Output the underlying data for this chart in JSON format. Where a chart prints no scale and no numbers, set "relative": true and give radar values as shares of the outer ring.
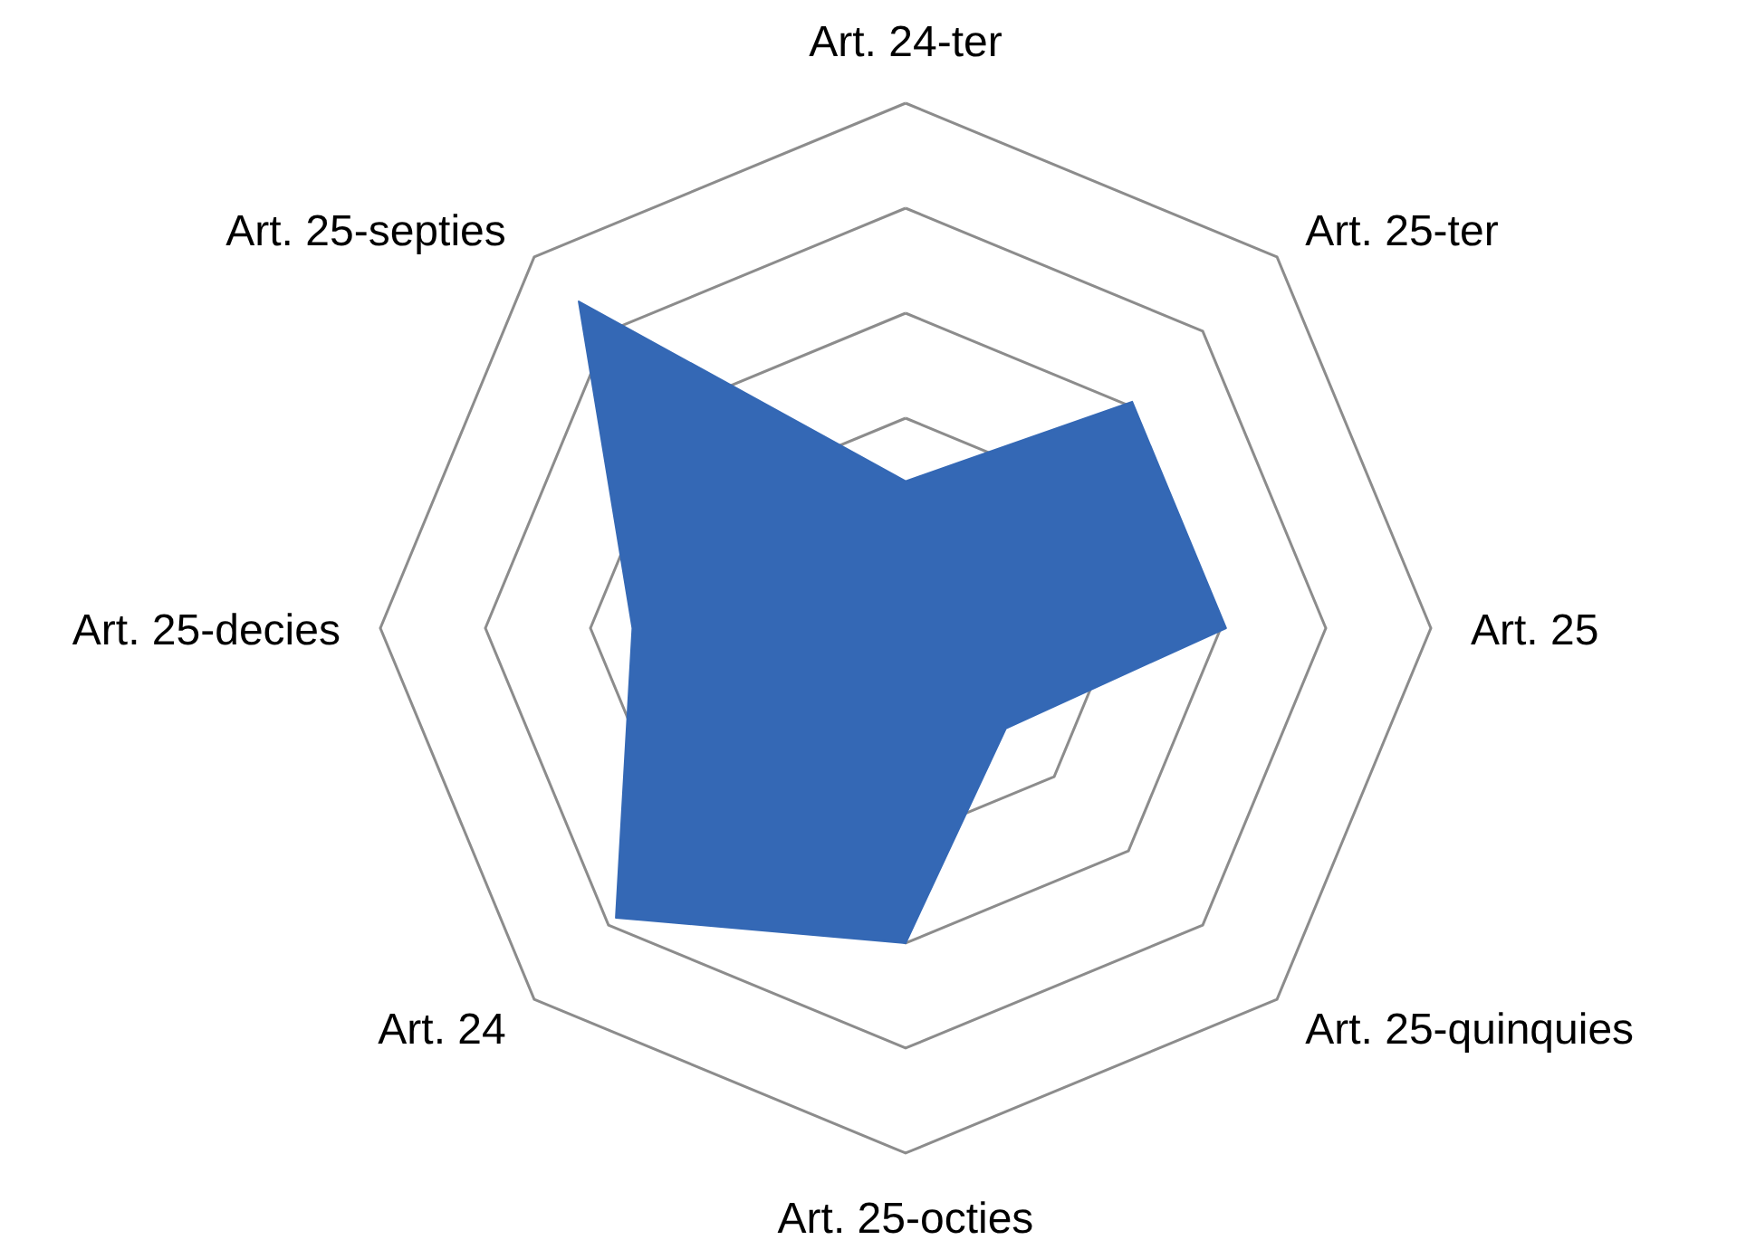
{
  "chart_data": {
    "type": "radar",
    "relative": true,
    "grid": true,
    "categories": [
      "Art. 24-ter",
      "Art. 25-ter",
      "Art. 25",
      "Art. 25-quinquies",
      "Art. 25-octies",
      "Art. 24",
      "Art. 25-decies",
      "Art. 25-septies"
    ],
    "series": [
      {
        "color": "#3468b5",
        "values": [
          0.28,
          0.61,
          0.61,
          0.27,
          0.6,
          0.78,
          0.52,
          0.88
        ]
      }
    ]
  }
}
